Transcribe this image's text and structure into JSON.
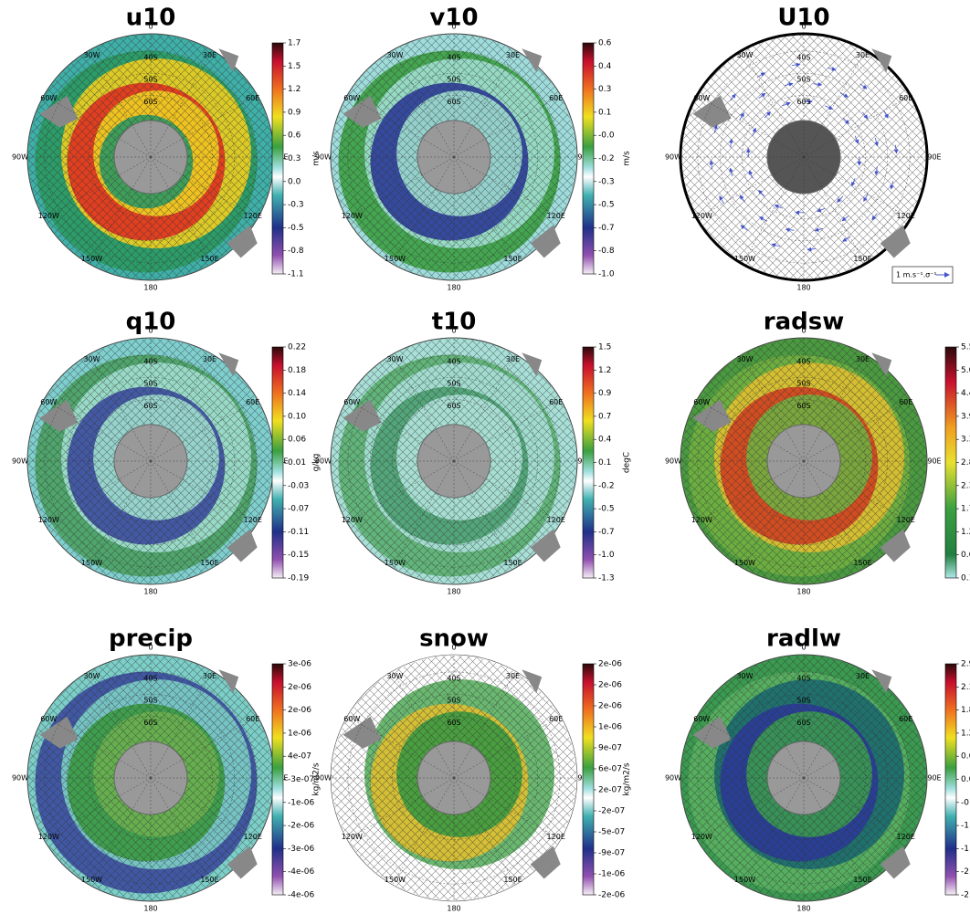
{
  "panels": [
    {
      "title": "u10",
      "unit": "m/s",
      "colorbar": [
        "1.7",
        "1.5",
        "1.2",
        "0.9",
        "0.6",
        "0.3",
        "0.0",
        "-0.3",
        "-0.5",
        "-0.8",
        "-1.1"
      ],
      "longitudes": [
        "0",
        "30E",
        "60E",
        "90E",
        "120E",
        "150E",
        "180",
        "150W",
        "120W",
        "90W",
        "60W",
        "30W"
      ],
      "latitudes": [
        "40S",
        "50S",
        "60S"
      ]
    },
    {
      "title": "v10",
      "unit": "m/s",
      "colorbar": [
        "0.6",
        "0.4",
        "0.3",
        "0.1",
        "-0.0",
        "-0.2",
        "-0.3",
        "-0.5",
        "-0.7",
        "-0.8",
        "-1.0"
      ],
      "longitudes": [
        "0",
        "30E",
        "60E",
        "90E",
        "120E",
        "150E",
        "180",
        "150W",
        "120W",
        "90W",
        "60W",
        "30W"
      ],
      "latitudes": [
        "40S",
        "50S",
        "60S"
      ]
    },
    {
      "title": "U10",
      "legend": "1 m.s⁻¹.σ⁻¹",
      "longitudes": [
        "0",
        "30E",
        "60E",
        "90E",
        "120E",
        "150E",
        "180",
        "150W",
        "120W",
        "90W",
        "60W",
        "30W"
      ],
      "latitudes": [
        "40S",
        "50S",
        "60S"
      ]
    },
    {
      "title": "q10",
      "unit": "g/kg",
      "colorbar": [
        "0.22",
        "0.18",
        "0.14",
        "0.10",
        "0.06",
        "0.01",
        "-0.03",
        "-0.07",
        "-0.11",
        "-0.15",
        "-0.19"
      ],
      "longitudes": [
        "0",
        "30E",
        "60E",
        "90E",
        "120E",
        "150E",
        "180",
        "150W",
        "120W",
        "90W",
        "60W",
        "30W"
      ],
      "latitudes": [
        "40S",
        "50S",
        "60S"
      ]
    },
    {
      "title": "t10",
      "unit": "degC",
      "colorbar": [
        "1.5",
        "1.2",
        "0.9",
        "0.7",
        "0.4",
        "0.1",
        "-0.2",
        "-0.5",
        "-0.7",
        "-1.0",
        "-1.3"
      ],
      "longitudes": [
        "0",
        "30E",
        "60E",
        "90E",
        "120E",
        "150E",
        "180",
        "150W",
        "120W",
        "90W",
        "60W",
        "30W"
      ],
      "latitudes": [
        "40S",
        "50S",
        "60S"
      ]
    },
    {
      "title": "radsw",
      "unit": "W/m2",
      "colorbar": [
        "5.5",
        "5.0",
        "4.4",
        "3.9",
        "3.3",
        "2.8",
        "2.3",
        "1.7",
        "1.2",
        "0.6",
        "0.1"
      ],
      "longitudes": [
        "0",
        "30E",
        "60E",
        "90E",
        "120E",
        "150E",
        "180",
        "150W",
        "120W",
        "90W",
        "60W",
        "30W"
      ],
      "latitudes": [
        "40S",
        "50S",
        "60S"
      ]
    },
    {
      "title": "precip",
      "unit": "kg/m2/s",
      "colorbar": [
        "3e-06",
        "2e-06",
        "2e-06",
        "1e-06",
        "4e-07",
        "-3e-07",
        "-1e-06",
        "-2e-06",
        "-3e-06",
        "-4e-06",
        "-4e-06"
      ],
      "longitudes": [
        "0",
        "30E",
        "60E",
        "90E",
        "120E",
        "150E",
        "180",
        "150W",
        "120W",
        "90W",
        "60W",
        "30W"
      ],
      "latitudes": [
        "40S",
        "50S",
        "60S"
      ]
    },
    {
      "title": "snow",
      "unit": "kg/m2/s",
      "colorbar": [
        "2e-06",
        "2e-06",
        "2e-06",
        "1e-06",
        "9e-07",
        "6e-07",
        "2e-07",
        "-2e-07",
        "-5e-07",
        "-9e-07",
        "-1e-06",
        "-2e-06"
      ],
      "longitudes": [
        "0",
        "30E",
        "60E",
        "90E",
        "120E",
        "150E",
        "180",
        "150W",
        "120W",
        "90W",
        "60W",
        "30W"
      ],
      "latitudes": [
        "40S",
        "50S",
        "60S"
      ]
    },
    {
      "title": "radlw",
      "unit": "W/m2",
      "colorbar": [
        "2.9",
        "2.3",
        "1.8",
        "1.2",
        "0.6",
        "0.0",
        "-0.6",
        "-1.1",
        "-1.7",
        "-2.3",
        "-2.9"
      ],
      "longitudes": [
        "0",
        "30E",
        "60E",
        "90E",
        "120E",
        "150E",
        "180",
        "150W",
        "120W",
        "90W",
        "60W",
        "30W"
      ],
      "latitudes": [
        "40S",
        "50S",
        "60S"
      ]
    }
  ]
}
